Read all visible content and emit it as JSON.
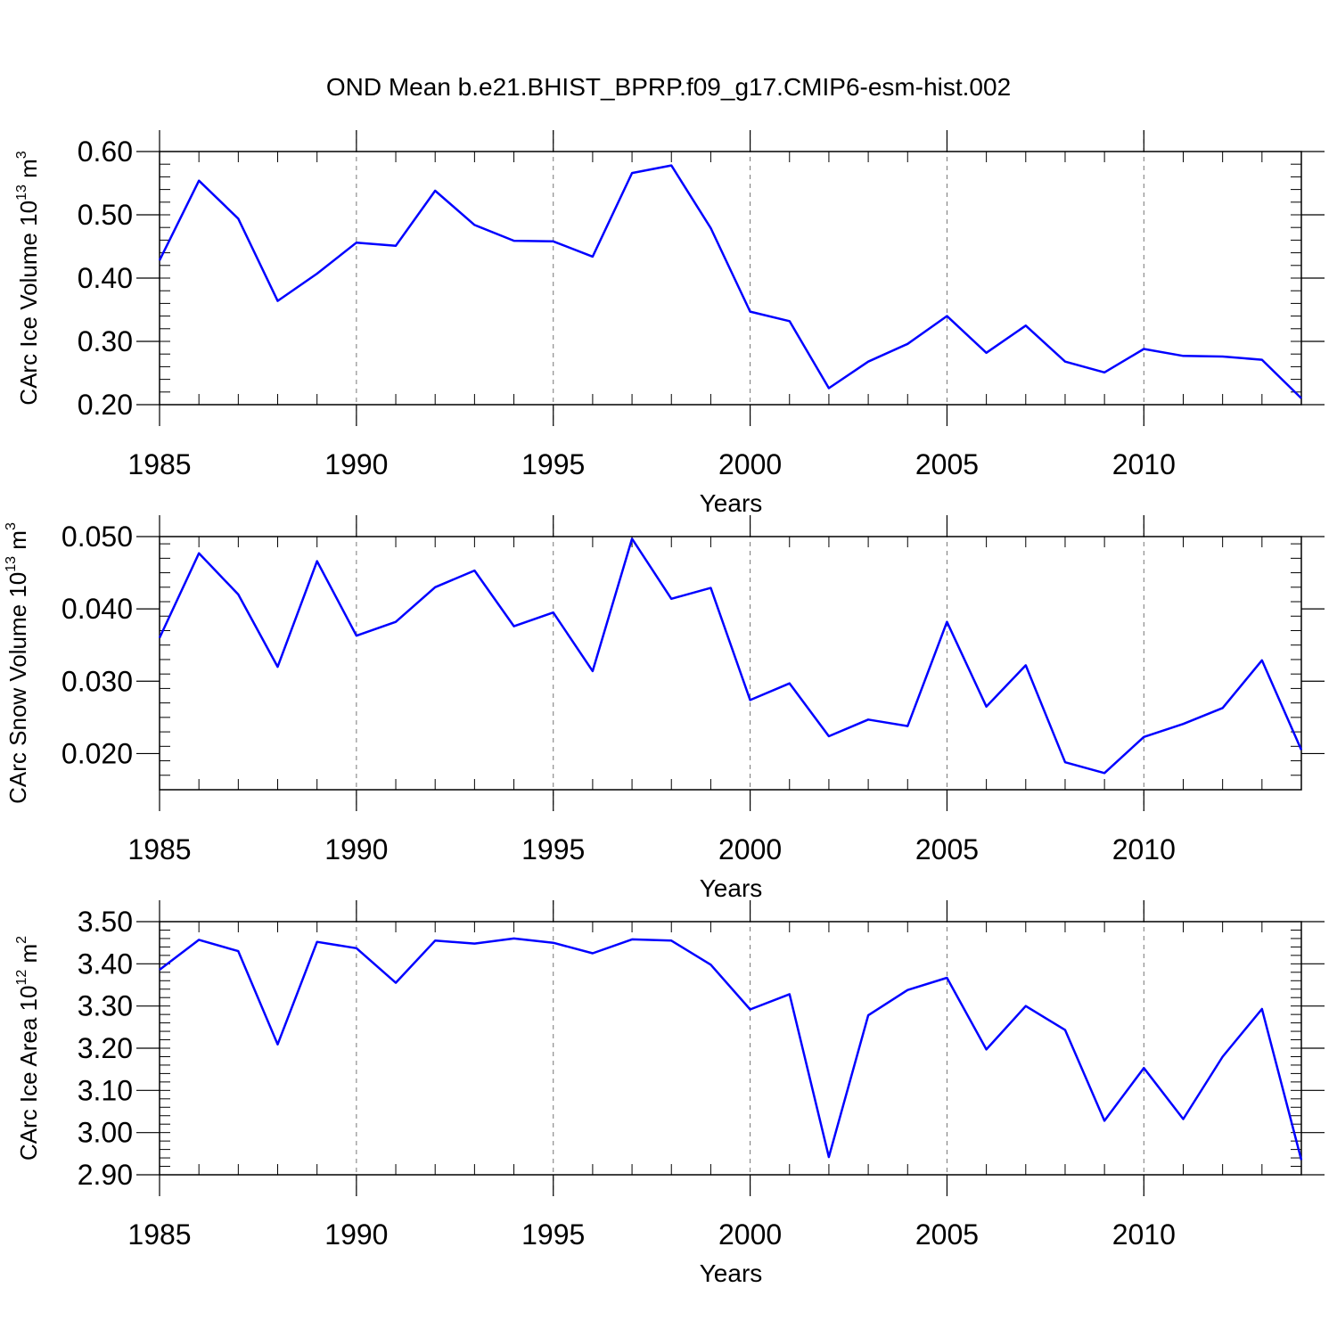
{
  "title": "OND Mean b.e21.BHIST_BPRP.f09_g17.CMIP6-esm-hist.002",
  "chart_data": [
    {
      "type": "line",
      "ylabel": "CArc Ice Volume 10",
      "ylabel_exp": "13",
      "ylabel_unit": " m",
      "ylabel_unit_exp": "3",
      "xlabel": "Years",
      "line_color": "#0000ff",
      "xlim": [
        1985,
        2014
      ],
      "ylim": [
        0.2,
        0.6
      ],
      "yticks": [
        0.2,
        0.3,
        0.4,
        0.5,
        0.6
      ],
      "ytick_labels": [
        "0.20",
        "0.30",
        "0.40",
        "0.50",
        "0.60"
      ],
      "xticks": [
        1985,
        1990,
        1995,
        2000,
        2005,
        2010
      ],
      "xtick_labels": [
        "1985",
        "1990",
        "1995",
        "2000",
        "2005",
        "2010"
      ],
      "grid_x": [
        1990,
        1995,
        2000,
        2005,
        2010
      ],
      "x": [
        1985,
        1986,
        1987,
        1988,
        1989,
        1990,
        1991,
        1992,
        1993,
        1994,
        1995,
        1996,
        1997,
        1998,
        1999,
        2000,
        2001,
        2002,
        2003,
        2004,
        2005,
        2006,
        2007,
        2008,
        2009,
        2010,
        2011,
        2012,
        2013,
        2014
      ],
      "y": [
        0.428,
        0.554,
        0.494,
        0.364,
        0.407,
        0.456,
        0.451,
        0.538,
        0.484,
        0.459,
        0.458,
        0.434,
        0.566,
        0.578,
        0.479,
        0.347,
        0.332,
        0.226,
        0.268,
        0.296,
        0.34,
        0.282,
        0.325,
        0.268,
        0.251,
        0.288,
        0.277,
        0.276,
        0.271,
        0.21
      ]
    },
    {
      "type": "line",
      "ylabel": "CArc Snow Volume 10",
      "ylabel_exp": "13",
      "ylabel_unit": " m",
      "ylabel_unit_exp": "3",
      "xlabel": "Years",
      "line_color": "#0000ff",
      "xlim": [
        1985,
        2014
      ],
      "ylim": [
        0.015,
        0.05
      ],
      "yticks": [
        0.02,
        0.03,
        0.04,
        0.05
      ],
      "ytick_labels": [
        "0.020",
        "0.030",
        "0.040",
        "0.050"
      ],
      "xticks": [
        1985,
        1990,
        1995,
        2000,
        2005,
        2010
      ],
      "xtick_labels": [
        "1985",
        "1990",
        "1995",
        "2000",
        "2005",
        "2010"
      ],
      "grid_x": [
        1990,
        1995,
        2000,
        2005,
        2010
      ],
      "x": [
        1985,
        1986,
        1987,
        1988,
        1989,
        1990,
        1991,
        1992,
        1993,
        1994,
        1995,
        1996,
        1997,
        1998,
        1999,
        2000,
        2001,
        2002,
        2003,
        2004,
        2005,
        2006,
        2007,
        2008,
        2009,
        2010,
        2011,
        2012,
        2013,
        2014
      ],
      "y": [
        0.036,
        0.0477,
        0.042,
        0.032,
        0.0466,
        0.0363,
        0.0382,
        0.043,
        0.0453,
        0.0376,
        0.0395,
        0.0314,
        0.0497,
        0.0414,
        0.0429,
        0.0274,
        0.0297,
        0.0224,
        0.0247,
        0.0238,
        0.0382,
        0.0265,
        0.0322,
        0.0188,
        0.0173,
        0.0223,
        0.0241,
        0.0263,
        0.0329,
        0.0205
      ]
    },
    {
      "type": "line",
      "ylabel": "CArc Ice Area 10",
      "ylabel_exp": "12",
      "ylabel_unit": " m",
      "ylabel_unit_exp": "2",
      "xlabel": "Years",
      "line_color": "#0000ff",
      "xlim": [
        1985,
        2014
      ],
      "ylim": [
        2.9,
        3.5
      ],
      "yticks": [
        2.9,
        3.0,
        3.1,
        3.2,
        3.3,
        3.4,
        3.5
      ],
      "ytick_labels": [
        "2.90",
        "3.00",
        "3.10",
        "3.20",
        "3.30",
        "3.40",
        "3.50"
      ],
      "xticks": [
        1985,
        1990,
        1995,
        2000,
        2005,
        2010
      ],
      "xtick_labels": [
        "1985",
        "1990",
        "1995",
        "2000",
        "2005",
        "2010"
      ],
      "grid_x": [
        1990,
        1995,
        2000,
        2005,
        2010
      ],
      "x": [
        1985,
        1986,
        1987,
        1988,
        1989,
        1990,
        1991,
        1992,
        1993,
        1994,
        1995,
        1996,
        1997,
        1998,
        1999,
        2000,
        2001,
        2002,
        2003,
        2004,
        2005,
        2006,
        2007,
        2008,
        2009,
        2010,
        2011,
        2012,
        2013,
        2014
      ],
      "y": [
        3.386,
        3.457,
        3.43,
        3.209,
        3.452,
        3.437,
        3.355,
        3.455,
        3.448,
        3.46,
        3.45,
        3.425,
        3.458,
        3.455,
        3.398,
        3.292,
        3.328,
        2.942,
        3.278,
        3.338,
        3.367,
        3.197,
        3.3,
        3.243,
        3.028,
        3.153,
        3.032,
        3.18,
        3.293,
        2.935
      ]
    }
  ]
}
